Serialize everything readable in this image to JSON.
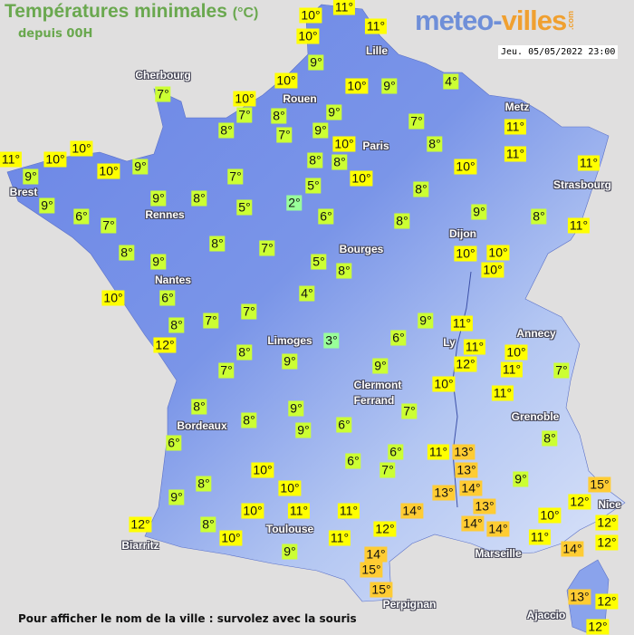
{
  "header": {
    "title": "Températures minimales",
    "unit": "(°C)",
    "subtitle": "depuis 00H",
    "logo_part1": "meteo-",
    "logo_part2": "villes",
    "logo_suffix": ".com",
    "datetime": "Jeu. 05/05/2022 23:00"
  },
  "colors": {
    "cold": "#99ff99",
    "cool": "#ccff33",
    "mild": "#ffff00",
    "warm": "#ffcc33",
    "land": "#7290e6",
    "sea": "#e0dfdf"
  },
  "cities": [
    "Cherbourg",
    "Rouen",
    "Lille",
    "Metz",
    "Paris",
    "Brest",
    "Rennes",
    "Strasbourg",
    "Dijon",
    "Bourges",
    "Nantes",
    "Limoges",
    "Annecy",
    "Ly",
    "Clermont",
    "Ferrand",
    "Grenoble",
    "Bordeaux",
    "Toulouse",
    "Biarritz",
    "Marseille",
    "Nice",
    "Perpignan",
    "Ajaccio"
  ],
  "temperatures": [
    "10°",
    "11°",
    "10°",
    "11°",
    "9°",
    "10°",
    "10°",
    "7°",
    "8°",
    "7°",
    "9°",
    "9°",
    "10°",
    "9°",
    "4°",
    "7°",
    "8°",
    "10°",
    "8°",
    "8°",
    "10°",
    "5°",
    "2°",
    "6°",
    "8°",
    "10°",
    "11°",
    "11°",
    "11°",
    "8°",
    "9°",
    "8°",
    "11°",
    "10°",
    "10°",
    "10°",
    "5°",
    "8°",
    "4°",
    "7°",
    "8°",
    "10°",
    "11°",
    "9°",
    "10°",
    "10°",
    "9°",
    "7°",
    "9°",
    "8°",
    "5°",
    "9°",
    "6°",
    "7°",
    "8°",
    "7°",
    "8°",
    "9°",
    "10°",
    "6°",
    "7°",
    "7°",
    "8°",
    "12°",
    "8°",
    "7°",
    "9°",
    "3°",
    "6°",
    "9°",
    "11°",
    "11°",
    "12°",
    "10°",
    "11°",
    "7°",
    "9°",
    "10°",
    "11°",
    "7°",
    "8°",
    "8°",
    "8°",
    "9°",
    "9°",
    "6°",
    "6°",
    "6°",
    "6°",
    "7°",
    "11°",
    "13°",
    "13°",
    "14°",
    "13°",
    "9°",
    "15°",
    "12°",
    "10°",
    "10°",
    "8°",
    "9°",
    "10°",
    "11°",
    "11°",
    "14°",
    "13°",
    "14°",
    "14°",
    "10°",
    "12°",
    "12°",
    "8°",
    "10°",
    "12°",
    "11°",
    "11°",
    "14°",
    "12°",
    "9°",
    "14°",
    "15°",
    "15°",
    "13°",
    "12°",
    "12°"
  ],
  "footer": "Pour afficher le nom de la ville : survolez avec la souris"
}
